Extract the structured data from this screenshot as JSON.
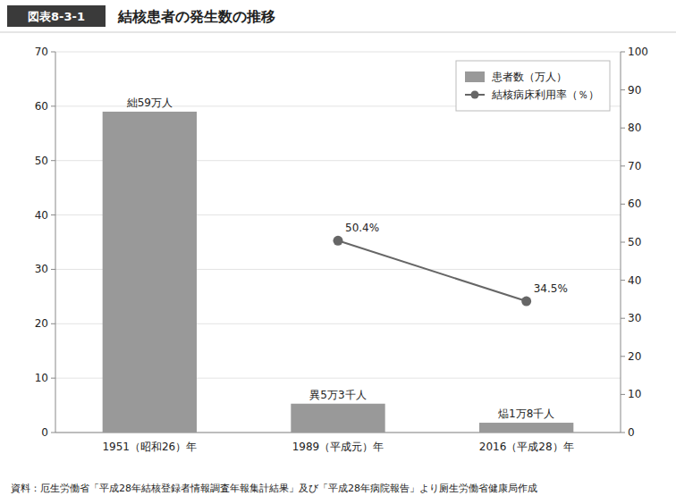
{
  "chart_data": {
    "type": "bar",
    "title": "結核患者の発生数の推移",
    "annotations": [
      "図表8-3-1",
      "資料：厄生労働省「平成28年結核登録者情報調査年報集計結果」及び「平成28年病院報告」より厕生労働省健康局作成"
    ],
    "categories": [
      "1951（昭和26）年",
      "1989（平成元）年",
      "2016（平成28）年"
    ],
    "series": [
      {
        "name": "患者数（万人）",
        "type": "bar",
        "color": "#999999",
        "values": [
          59,
          5.3,
          1.8
        ],
        "value_labels": [
          "絀59万人",
          "異5万3千人",
          "煰1万8千人"
        ]
      },
      {
        "name": "結核病床利用率（％）",
        "type": "line",
        "axis": "y2",
        "color": "#666666",
        "marker": "circle",
        "values": [
          null,
          50.4,
          34.5
        ],
        "value_labels": [
          null,
          "50.4%",
          "34.5%"
        ]
      }
    ],
    "ylim": [
      0,
      70
    ],
    "yticks": [
      0,
      10,
      20,
      30,
      40,
      50,
      60,
      70
    ],
    "y2lim": [
      0,
      100
    ],
    "y2ticks": [
      0,
      10,
      20,
      30,
      40,
      50,
      60,
      70,
      80,
      90,
      100
    ],
    "grid": true,
    "legend": "upper right",
    "data_labels": true
  }
}
